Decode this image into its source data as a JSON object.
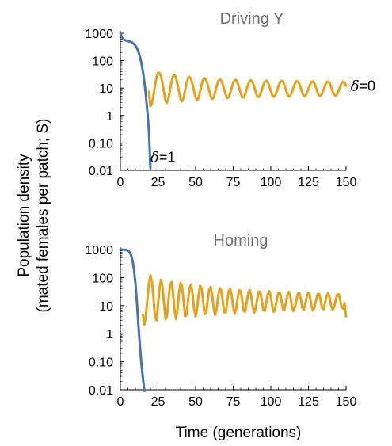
{
  "figure": {
    "ylabel_line1": "Population density",
    "ylabel_line2": "(mated females per patch; S)",
    "xlabel": "Time (generations)"
  },
  "chart_data": [
    {
      "type": "line",
      "title": "Driving Y",
      "xlim": [
        0,
        150
      ],
      "yscale": "log",
      "ylim": [
        0.01,
        1000
      ],
      "xticks": [
        "0",
        "25",
        "50",
        "75",
        "100",
        "125",
        "150"
      ],
      "yticks": [
        "1000",
        "100",
        "10",
        "1",
        "0.10",
        "0.01"
      ],
      "colors": {
        "blue": "#4a72b0",
        "orange": "#e3a21a"
      },
      "annotations": [
        {
          "symbol": "δ",
          "text": "=1",
          "at_x": 20,
          "at_y": 0.03
        },
        {
          "symbol": "δ",
          "text": "=0",
          "at_x": 153,
          "at_y": 12
        }
      ],
      "series": [
        {
          "color": "#4a72b0",
          "x": [
            0,
            1,
            2,
            3,
            4,
            5,
            6,
            7,
            8,
            9,
            10,
            11,
            12,
            13,
            14,
            15,
            16,
            17,
            18,
            19,
            20
          ],
          "y": [
            1000,
            720,
            600,
            560,
            540,
            520,
            500,
            480,
            450,
            410,
            350,
            290,
            210,
            140,
            80,
            40,
            16,
            5,
            1.3,
            0.25,
            0.012
          ]
        },
        {
          "color": "#e3a21a",
          "x": [
            19,
            20,
            21,
            22,
            23,
            24,
            25,
            26,
            27,
            28,
            29,
            30,
            31,
            32,
            33,
            34,
            35,
            36,
            37,
            38,
            39,
            40,
            41,
            42,
            43,
            44,
            45,
            46,
            47,
            48,
            49,
            50,
            51,
            52,
            53,
            54,
            55,
            56,
            57,
            58,
            59,
            60,
            61,
            62,
            63,
            64,
            65,
            66,
            67,
            68,
            69,
            70,
            71,
            72,
            73,
            74,
            75,
            76,
            77,
            78,
            79,
            80,
            81,
            82,
            83,
            84,
            85,
            86,
            87,
            88,
            89,
            90,
            91,
            92,
            93,
            94,
            95,
            96,
            97,
            98,
            99,
            100,
            101,
            102,
            103,
            104,
            105,
            106,
            107,
            108,
            109,
            110,
            111,
            112,
            113,
            114,
            115,
            116,
            117,
            118,
            119,
            120,
            121,
            122,
            123,
            124,
            125,
            126,
            127,
            128,
            129,
            130,
            131,
            132,
            133,
            134,
            135,
            136,
            137,
            138,
            139,
            140,
            141,
            142,
            143,
            144,
            145,
            146,
            147,
            148,
            149,
            150
          ],
          "y": [
            7.4,
            2.2,
            2.8,
            5.5,
            12.5,
            24.8,
            36.4,
            35.6,
            26.8,
            14.9,
            6.9,
            3.4,
            2.9,
            4.2,
            8.4,
            17.4,
            27.4,
            30.1,
            23.4,
            13.8,
            7.1,
            3.9,
            3.3,
            4.4,
            8.4,
            15.6,
            23.5,
            25.7,
            21.0,
            13.2,
            7.6,
            4.5,
            3.6,
            4.5,
            7.9,
            13.7,
            20.3,
            23.0,
            19.7,
            13.5,
            8.2,
            5.1,
            4.0,
            4.5,
            7.2,
            12.0,
            17.9,
            21.2,
            19.4,
            14.1,
            9.0,
            5.7,
            4.3,
            4.6,
            6.6,
            10.6,
            16.0,
            19.9,
            19.4,
            15.0,
            9.9,
            6.3,
            4.6,
            4.6,
            6.1,
            9.4,
            14.2,
            18.5,
            19.2,
            15.9,
            11.0,
            7.0,
            5.0,
            4.7,
            5.8,
            8.5,
            12.7,
            17.1,
            18.8,
            16.6,
            12.0,
            7.8,
            5.4,
            4.8,
            5.5,
            7.7,
            11.4,
            15.8,
            18.4,
            17.1,
            13.1,
            8.7,
            5.9,
            4.9,
            5.3,
            7.1,
            10.3,
            14.5,
            17.7,
            17.4,
            14.0,
            9.6,
            6.4,
            5.1,
            5.2,
            6.6,
            9.4,
            13.3,
            16.9,
            17.5,
            14.8,
            10.5,
            7.0,
            5.4,
            5.2,
            6.2,
            8.7,
            12.3,
            16.0,
            17.4,
            15.4,
            11.4,
            7.6,
            5.7,
            5.2,
            5.9,
            8.0,
            11.4,
            15.1,
            17.1,
            15.8,
            12.2
          ]
        }
      ]
    },
    {
      "type": "line",
      "title": "Homing",
      "xlim": [
        0,
        150
      ],
      "yscale": "log",
      "ylim": [
        0.01,
        1000
      ],
      "xticks": [
        "0",
        "25",
        "50",
        "75",
        "100",
        "125",
        "150"
      ],
      "yticks": [
        "1000",
        "100",
        "10",
        "1",
        "0.10",
        "0.01"
      ],
      "colors": {
        "blue": "#4a72b0",
        "orange": "#e3a21a"
      },
      "series": [
        {
          "color": "#4a72b0",
          "x": [
            0,
            1,
            2,
            3,
            4,
            5,
            6,
            7,
            8,
            9,
            10,
            11,
            12,
            13,
            14,
            15,
            16
          ],
          "y": [
            1000,
            1000,
            990,
            980,
            960,
            920,
            820,
            650,
            420,
            200,
            65,
            13,
            2,
            0.35,
            0.08,
            0.025,
            0.009
          ]
        },
        {
          "color": "#e3a21a",
          "x": [
            15,
            16,
            17,
            18,
            19,
            20,
            21,
            22,
            23,
            24,
            25,
            26,
            27,
            28,
            29,
            30,
            31,
            32,
            33,
            34,
            35,
            36,
            37,
            38,
            39,
            40,
            41,
            42,
            43,
            44,
            45,
            46,
            47,
            48,
            49,
            50,
            51,
            52,
            53,
            54,
            55,
            56,
            57,
            58,
            59,
            60,
            61,
            62,
            63,
            64,
            65,
            66,
            67,
            68,
            69,
            70,
            71,
            72,
            73,
            74,
            75,
            76,
            77,
            78,
            79,
            80,
            81,
            82,
            83,
            84,
            85,
            86,
            87,
            88,
            89,
            90,
            91,
            92,
            93,
            94,
            95,
            96,
            97,
            98,
            99,
            100,
            101,
            102,
            103,
            104,
            105,
            106,
            107,
            108,
            109,
            110,
            111,
            112,
            113,
            114,
            115,
            116,
            117,
            118,
            119,
            120,
            121,
            122,
            123,
            124,
            125,
            126,
            127,
            128,
            129,
            130,
            131,
            132,
            133,
            134,
            135,
            136,
            137,
            138,
            139,
            140,
            141,
            142,
            143,
            144,
            145,
            146,
            147,
            148,
            149,
            150
          ],
          "y": [
            4.6,
            2.1,
            4.6,
            18.0,
            62.5,
            119.9,
            66.5,
            19.6,
            4.2,
            3.0,
            10.5,
            41.1,
            85.0,
            47.1,
            12.4,
            3.3,
            4.1,
            16.2,
            53.6,
            70.0,
            28.5,
            6.9,
            3.3,
            7.4,
            29.2,
            64.9,
            48.2,
            14.8,
            4.2,
            4.7,
            15.9,
            44.4,
            56.0,
            25.5,
            7.6,
            4.0,
            7.8,
            24.7,
            50.9,
            40.4,
            14.6,
            5.0,
            5.2,
            14.8,
            37.4,
            46.5,
            23.5,
            8.1,
            4.6,
            7.9,
            21.5,
            41.8,
            35.6,
            14.9,
            5.7,
            5.7,
            13.9,
            32.3,
            40.3,
            22.2,
            8.5,
            5.1,
            8.0,
            19.3,
            35.9,
            32.4,
            15.2,
            6.4,
            6.1,
            13.3,
            28.7,
            36.1,
            21.4,
            8.9,
            5.6,
            8.2,
            17.7,
            31.9,
            30.2,
            15.5,
            7.0,
            6.5,
            12.9,
            26.1,
            33.1,
            20.9,
            9.3,
            6.0,
            8.4,
            16.6,
            29.0,
            28.6,
            15.8,
            7.5,
            6.9,
            12.6,
            24.1,
            31.0,
            20.6,
            9.7,
            6.4,
            8.6,
            15.8,
            26.9,
            27.3,
            16.1,
            8.0,
            7.2,
            12.4,
            22.6,
            29.5,
            20.5,
            10.1,
            6.7,
            8.8,
            15.2,
            25.2,
            26.4,
            16.3,
            8.4,
            7.5,
            12.3,
            21.4,
            28.3,
            20.4,
            10.4,
            7.1,
            8.9,
            14.7,
            23.9,
            25.8,
            16.6,
            8.8,
            7.8,
            12.2,
            4.1
          ]
        }
      ]
    }
  ]
}
